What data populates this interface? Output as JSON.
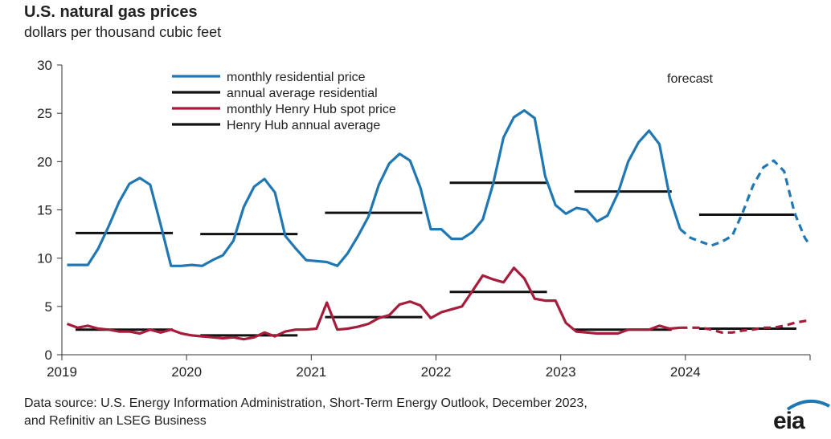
{
  "header": {
    "title": "U.S. natural gas prices",
    "subtitle": "dollars per thousand cubic feet"
  },
  "footer": {
    "source_line1": "Data source: U.S. Energy Information Administration, Short-Term Energy Outlook, December 2023,",
    "source_line2": "and Refinitiv an LSEG Business",
    "logo_text": "eia"
  },
  "colors": {
    "residential": "#1f77b4",
    "henry_hub": "#a51d3a",
    "annual": "#111111",
    "axis": "#333333"
  },
  "chart_data": {
    "type": "line",
    "title": "U.S. natural gas prices",
    "ylabel": "dollars per thousand cubic feet",
    "ylim": [
      0,
      30
    ],
    "yticks": [
      0,
      5,
      10,
      15,
      20,
      25,
      30
    ],
    "xlim": [
      2019,
      2025
    ],
    "xticks": [
      "2019",
      "2020",
      "2021",
      "2022",
      "2023",
      "2024"
    ],
    "annotation": "forecast",
    "forecast_start": "2023-12",
    "legend_position": "top-left",
    "legend": [
      {
        "label": "monthly residential price",
        "color": "#1f77b4"
      },
      {
        "label": "annual average residential",
        "color": "#111111"
      },
      {
        "label": "monthly Henry Hub spot price",
        "color": "#a51d3a"
      },
      {
        "label": "Henry Hub annual average",
        "color": "#111111"
      }
    ],
    "x": [
      "2019-01",
      "2019-02",
      "2019-03",
      "2019-04",
      "2019-05",
      "2019-06",
      "2019-07",
      "2019-08",
      "2019-09",
      "2019-10",
      "2019-11",
      "2019-12",
      "2020-01",
      "2020-02",
      "2020-03",
      "2020-04",
      "2020-05",
      "2020-06",
      "2020-07",
      "2020-08",
      "2020-09",
      "2020-10",
      "2020-11",
      "2020-12",
      "2021-01",
      "2021-02",
      "2021-03",
      "2021-04",
      "2021-05",
      "2021-06",
      "2021-07",
      "2021-08",
      "2021-09",
      "2021-10",
      "2021-11",
      "2021-12",
      "2022-01",
      "2022-02",
      "2022-03",
      "2022-04",
      "2022-05",
      "2022-06",
      "2022-07",
      "2022-08",
      "2022-09",
      "2022-10",
      "2022-11",
      "2022-12",
      "2023-01",
      "2023-02",
      "2023-03",
      "2023-04",
      "2023-05",
      "2023-06",
      "2023-07",
      "2023-08",
      "2023-09",
      "2023-10",
      "2023-11",
      "2023-12",
      "2024-01",
      "2024-02",
      "2024-03",
      "2024-04",
      "2024-05",
      "2024-06",
      "2024-07",
      "2024-08",
      "2024-09",
      "2024-10",
      "2024-11",
      "2024-12"
    ],
    "series": [
      {
        "name": "monthly residential price",
        "color": "#1f77b4",
        "values": [
          9.3,
          9.3,
          9.3,
          11.0,
          13.3,
          15.8,
          17.7,
          18.3,
          17.6,
          13.5,
          9.2,
          9.2,
          9.3,
          9.2,
          9.8,
          10.3,
          11.8,
          15.3,
          17.4,
          18.2,
          16.8,
          12.3,
          11.0,
          9.8,
          9.7,
          9.6,
          9.2,
          10.5,
          12.3,
          14.3,
          17.6,
          19.8,
          20.8,
          20.1,
          17.3,
          13.0,
          13.0,
          12.0,
          12.0,
          12.7,
          14.0,
          17.7,
          22.5,
          24.6,
          25.3,
          24.5,
          18.5,
          15.5,
          14.6,
          15.2,
          15.0,
          13.8,
          14.4,
          16.7,
          20.0,
          22.0,
          23.2,
          21.8,
          16.3,
          13.0,
          12.1,
          11.7,
          11.3,
          11.7,
          12.3,
          14.7,
          17.5,
          19.4,
          20.1,
          19.0,
          14.7,
          12.1
        ],
        "forecast_values": [
          null,
          null,
          null,
          null,
          null,
          null,
          null,
          null,
          null,
          null,
          null,
          null,
          null,
          null,
          null,
          null,
          null,
          null,
          null,
          null,
          null,
          null,
          null,
          null,
          null,
          null,
          null,
          null,
          null,
          null,
          null,
          null,
          null,
          null,
          null,
          null,
          null,
          null,
          null,
          null,
          null,
          null,
          null,
          null,
          null,
          null,
          null,
          null,
          null,
          null,
          null,
          null,
          null,
          null,
          null,
          null,
          null,
          null,
          null,
          13.0,
          12.1,
          11.7,
          11.3,
          11.7,
          12.3,
          14.7,
          17.5,
          19.4,
          20.1,
          19.0,
          14.7,
          12.1,
          11.3
        ]
      },
      {
        "name": "monthly Henry Hub spot price",
        "color": "#a51d3a",
        "values": [
          3.2,
          2.8,
          3.0,
          2.7,
          2.6,
          2.4,
          2.4,
          2.2,
          2.6,
          2.3,
          2.6,
          2.2,
          2.0,
          1.9,
          1.8,
          1.7,
          1.8,
          1.6,
          1.8,
          2.3,
          1.9,
          2.4,
          2.6,
          2.6,
          2.7,
          5.4,
          2.6,
          2.7,
          2.9,
          3.2,
          3.8,
          4.1,
          5.2,
          5.5,
          5.1,
          3.8,
          4.4,
          4.7,
          5.0,
          6.6,
          8.2,
          7.8,
          7.5,
          9.0,
          7.9,
          5.8,
          5.6,
          5.6,
          3.3,
          2.4,
          2.3,
          2.2,
          2.2,
          2.2,
          2.6,
          2.6,
          2.6,
          3.0,
          2.7,
          2.8,
          2.8,
          2.8,
          2.6,
          2.3,
          2.3,
          2.5,
          2.6,
          2.8,
          2.8,
          3.0,
          3.3,
          3.5
        ],
        "forecast_from": "2023-12"
      }
    ],
    "annual_averages": {
      "residential": [
        {
          "year": "2019",
          "value": 12.6
        },
        {
          "year": "2020",
          "value": 12.5
        },
        {
          "year": "2021",
          "value": 14.7
        },
        {
          "year": "2022",
          "value": 17.8
        },
        {
          "year": "2023",
          "value": 16.9
        },
        {
          "year": "2024",
          "value": 14.5
        }
      ],
      "henry_hub": [
        {
          "year": "2019",
          "value": 2.6
        },
        {
          "year": "2020",
          "value": 2.0
        },
        {
          "year": "2021",
          "value": 3.9
        },
        {
          "year": "2022",
          "value": 6.5
        },
        {
          "year": "2023",
          "value": 2.6
        },
        {
          "year": "2024",
          "value": 2.7
        }
      ]
    }
  }
}
